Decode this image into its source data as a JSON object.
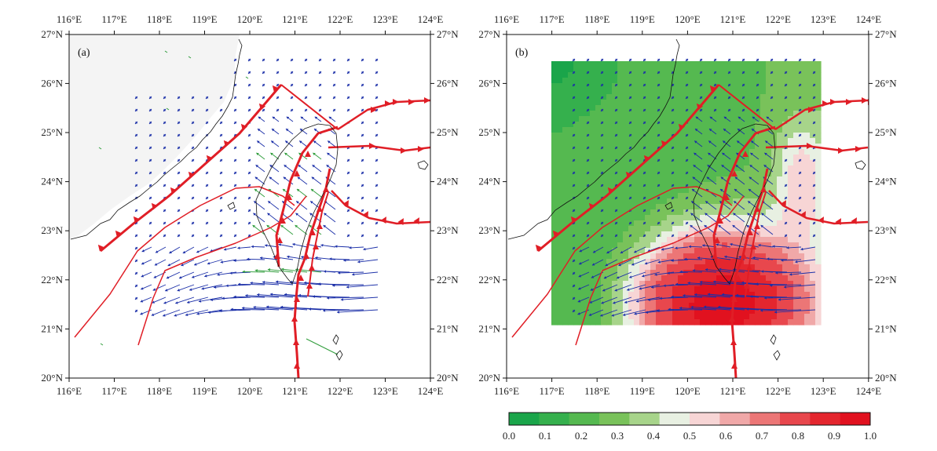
{
  "panels": [
    {
      "label": "(a)",
      "lon_range": [
        116,
        124
      ],
      "lat_range": [
        20,
        27
      ]
    },
    {
      "label": "(b)",
      "lon_range": [
        116,
        124
      ],
      "lat_range": [
        20,
        27
      ]
    }
  ],
  "axes": {
    "lon_ticks": [
      "116°E",
      "117°E",
      "118°E",
      "119°E",
      "120°E",
      "121°E",
      "122°E",
      "123°E",
      "124°E"
    ],
    "lat_ticks": [
      "20°N",
      "21°N",
      "22°N",
      "23°N",
      "24°N",
      "25°N",
      "26°N",
      "27°N"
    ]
  },
  "colorbar": {
    "ticks": [
      "0.0",
      "0.1",
      "0.2",
      "0.3",
      "0.4",
      "0.5",
      "0.6",
      "0.7",
      "0.8",
      "0.9",
      "1.0"
    ],
    "colors": [
      "#1aa54a",
      "#35b04d",
      "#55b950",
      "#79c25a",
      "#a7d48a",
      "#e8f0e2",
      "#f7d5d5",
      "#f0a8a8",
      "#ec7676",
      "#e8474d",
      "#e4262e",
      "#e1111f"
    ],
    "bin_edges": [
      0.0,
      0.15,
      0.2,
      0.3,
      0.35,
      0.4,
      0.45,
      0.5,
      0.55,
      0.65,
      0.8,
      1.0
    ]
  },
  "colors": {
    "fault": "#e01e26",
    "vector_blue": "#1b2fa8",
    "vector_green": "#2e9c3a",
    "land_a": "#f4f4f4",
    "coast": "#111111"
  }
}
